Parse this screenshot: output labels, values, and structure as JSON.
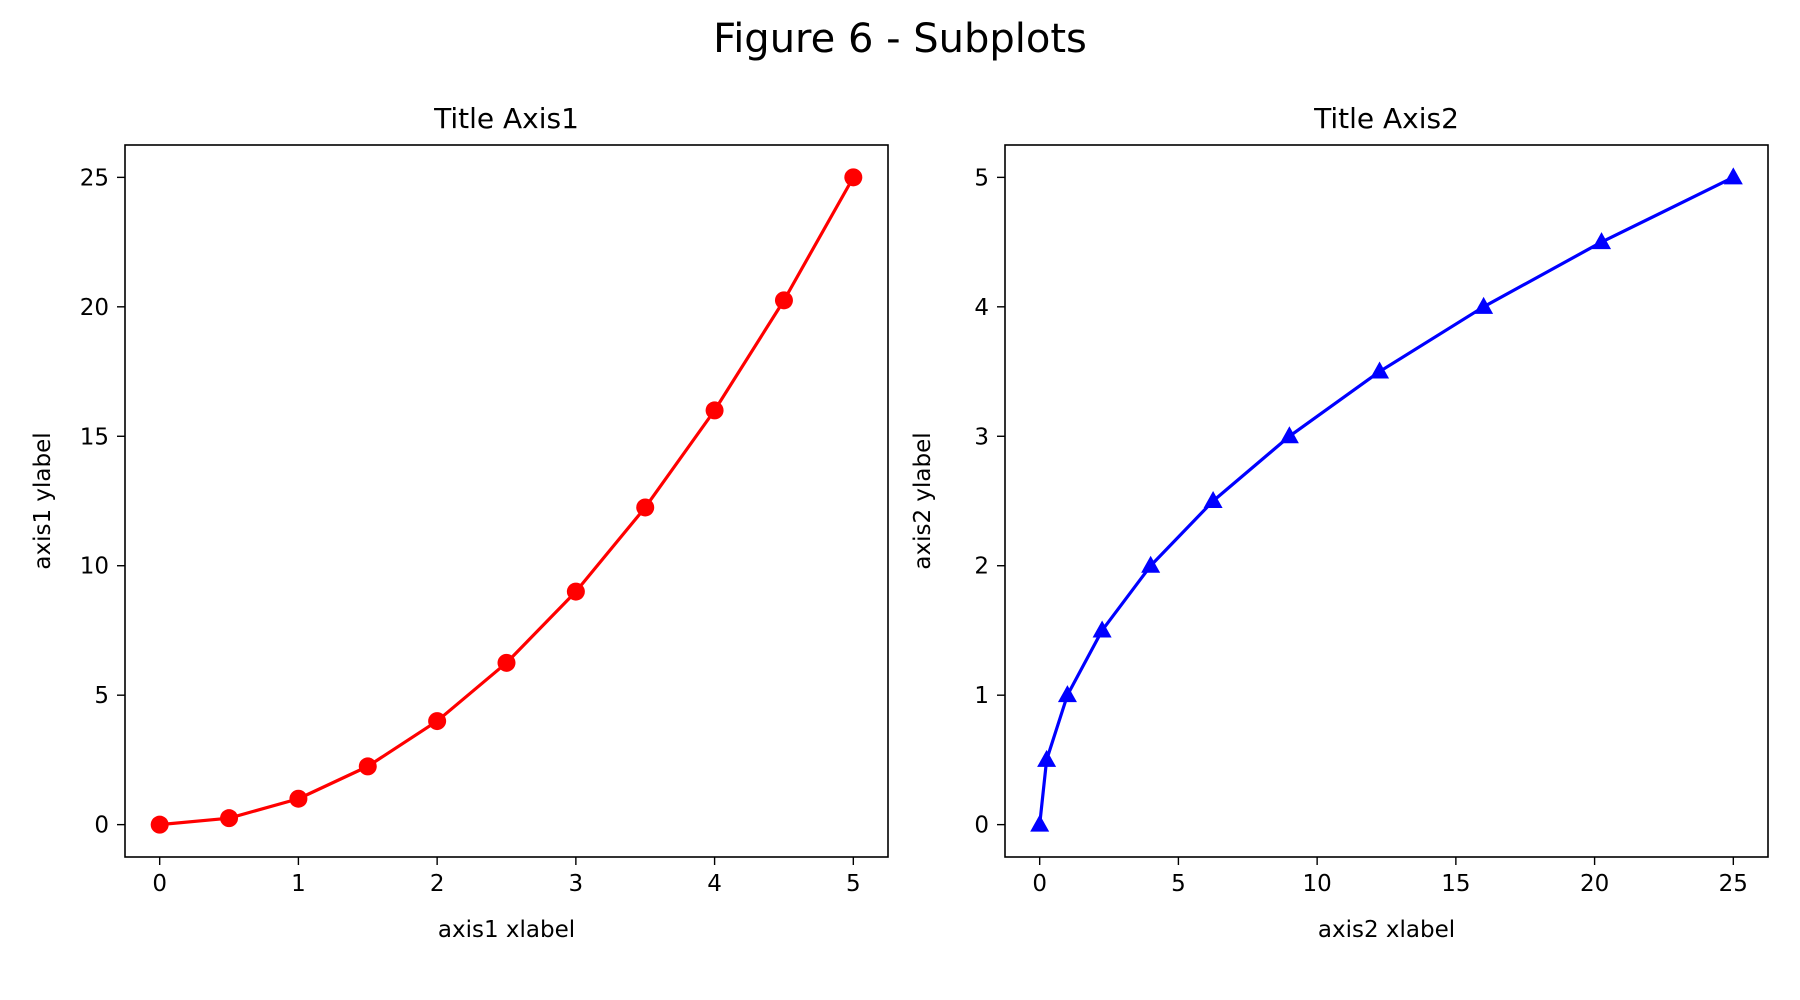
{
  "figure": {
    "title": "Figure 6 - Subplots"
  },
  "chart_data": [
    {
      "type": "line",
      "title": "Title Axis1",
      "xlabel": "axis1 xlabel",
      "ylabel": "axis1 ylabel",
      "xlim": [
        -0.25,
        5.25
      ],
      "ylim": [
        -1.25,
        26.25
      ],
      "xticks": [
        0,
        1,
        2,
        3,
        4,
        5
      ],
      "xtick_labels": [
        "0",
        "1",
        "2",
        "3",
        "4",
        "5"
      ],
      "yticks": [
        0,
        5,
        10,
        15,
        20,
        25
      ],
      "ytick_labels": [
        "0",
        "5",
        "10",
        "15",
        "20",
        "25"
      ],
      "grid": false,
      "series": [
        {
          "color": "#ff0000",
          "marker": "circle",
          "x": [
            0,
            0.5,
            1,
            1.5,
            2,
            2.5,
            3,
            3.5,
            4,
            4.5,
            5
          ],
          "y": [
            0,
            0.25,
            1,
            2.25,
            4,
            6.25,
            9,
            12.25,
            16,
            20.25,
            25
          ]
        }
      ]
    },
    {
      "type": "line",
      "title": "Title Axis2",
      "xlabel": "axis2 xlabel",
      "ylabel": "axis2 ylabel",
      "xlim": [
        -1.25,
        26.25
      ],
      "ylim": [
        -0.25,
        5.25
      ],
      "xticks": [
        0,
        5,
        10,
        15,
        20,
        25
      ],
      "xtick_labels": [
        "0",
        "5",
        "10",
        "15",
        "20",
        "25"
      ],
      "yticks": [
        0,
        1,
        2,
        3,
        4,
        5
      ],
      "ytick_labels": [
        "0",
        "1",
        "2",
        "3",
        "4",
        "5"
      ],
      "grid": false,
      "series": [
        {
          "color": "#0000ff",
          "marker": "triangle",
          "x": [
            0,
            0.25,
            1,
            2.25,
            4,
            6.25,
            9,
            12.25,
            16,
            20.25,
            25
          ],
          "y": [
            0,
            0.5,
            1,
            1.5,
            2,
            2.5,
            3,
            3.5,
            4,
            4.5,
            5
          ]
        }
      ]
    }
  ]
}
